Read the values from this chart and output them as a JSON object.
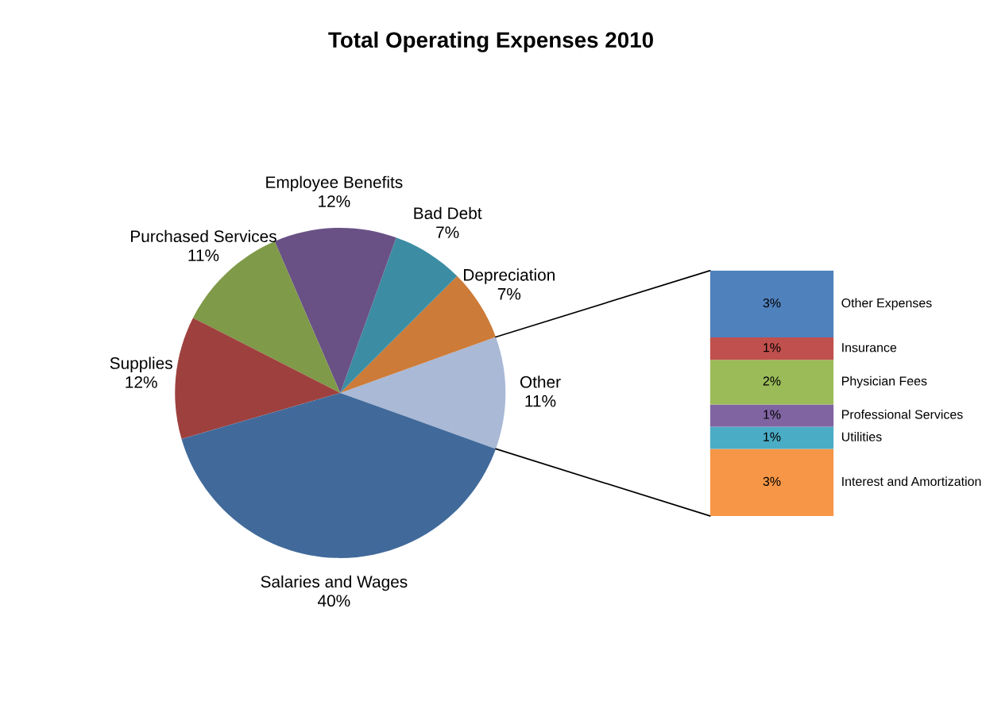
{
  "chart_data": [
    {
      "type": "pie",
      "title": "Total Operating Expenses 2010",
      "categories": [
        "Other",
        "Depreciation",
        "Bad Debt",
        "Employee Benefits",
        "Purchased Services",
        "Supplies",
        "Salaries and Wages"
      ],
      "values": [
        11,
        7,
        7,
        12,
        11,
        12,
        40
      ],
      "value_labels": [
        "11%",
        "7%",
        "7%",
        "12%",
        "11%",
        "12%",
        "40%"
      ],
      "colors": [
        "#a9b9d6",
        "#cc7b38",
        "#3c8da3",
        "#695185",
        "#7f9a48",
        "#9e413e",
        "#416a9b"
      ]
    },
    {
      "type": "bar",
      "stacked": true,
      "categories": [
        null
      ],
      "series": [
        {
          "name": "Interest and Amortization",
          "color": "#f79646",
          "values": [
            3
          ],
          "value_labels": [
            "3%"
          ]
        },
        {
          "name": "Utilities",
          "color": "#4bacc6",
          "values": [
            1
          ],
          "value_labels": [
            "1%"
          ]
        },
        {
          "name": "Professional Services",
          "color": "#8064a2",
          "values": [
            1
          ],
          "value_labels": [
            "1%"
          ]
        },
        {
          "name": "Physician Fees",
          "color": "#9bbb59",
          "values": [
            2
          ],
          "value_labels": [
            "2%"
          ]
        },
        {
          "name": "Insurance",
          "color": "#c0504d",
          "values": [
            1
          ],
          "value_labels": [
            "1%"
          ]
        },
        {
          "name": "Other Expenses",
          "color": "#4f81bd",
          "values": [
            3
          ],
          "value_labels": [
            "3%"
          ]
        }
      ]
    }
  ]
}
